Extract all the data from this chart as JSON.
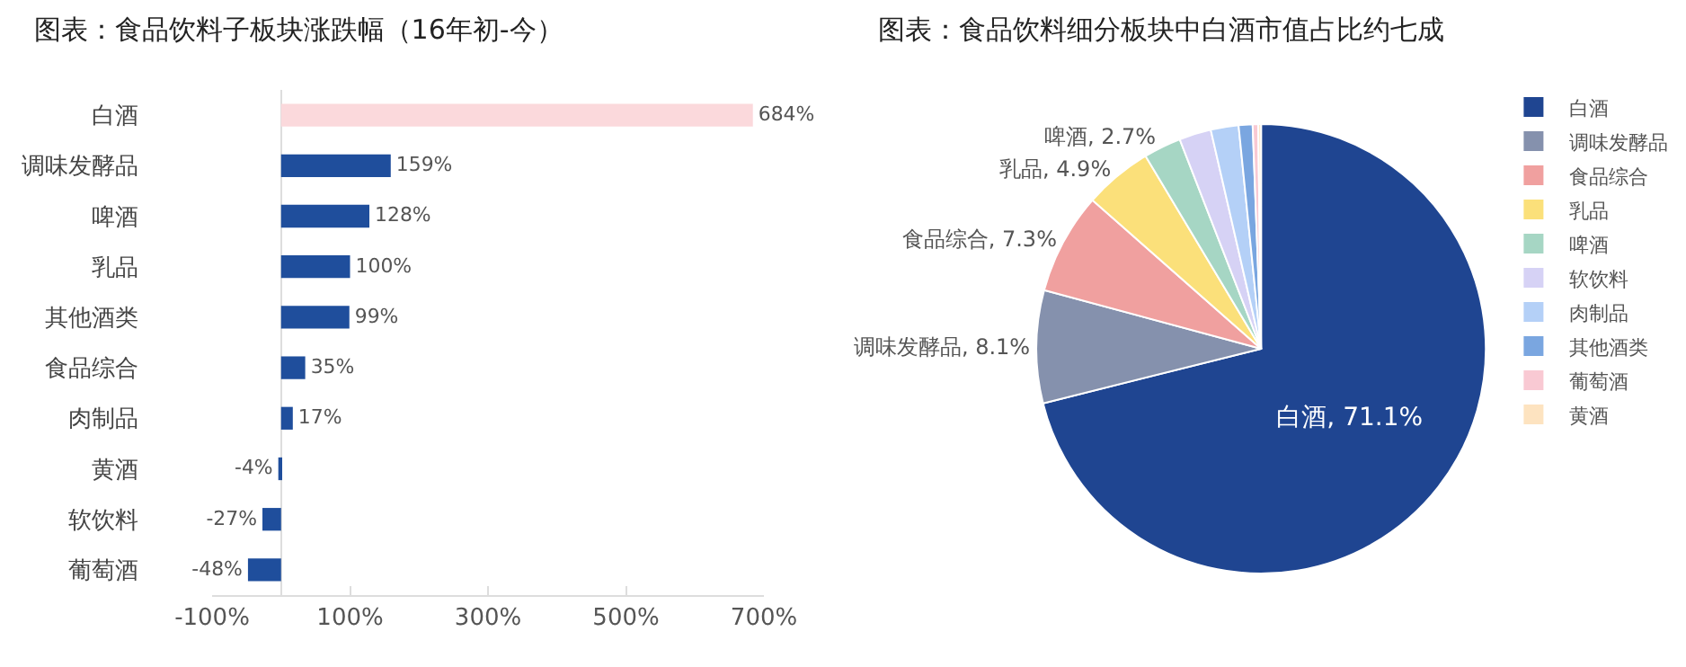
{
  "chart_data": [
    {
      "type": "bar",
      "title": "图表：食品饮料子板块涨跌幅（16年初-今）",
      "orientation": "horizontal",
      "categories": [
        "白酒",
        "调味发酵品",
        "啤酒",
        "乳品",
        "其他酒类",
        "食品综合",
        "肉制品",
        "黄酒",
        "软饮料",
        "葡萄酒"
      ],
      "values": [
        684,
        159,
        128,
        100,
        99,
        35,
        17,
        -4,
        -27,
        -48
      ],
      "colors": [
        "#fbd9dc",
        "#1f4e9c",
        "#1f4e9c",
        "#1f4e9c",
        "#1f4e9c",
        "#1f4e9c",
        "#1f4e9c",
        "#1f4e9c",
        "#1f4e9c",
        "#1f4e9c"
      ],
      "value_labels": [
        "684%",
        "159%",
        "128%",
        "100%",
        "99%",
        "35%",
        "17%",
        "-4%",
        "-27%",
        "-48%"
      ],
      "xlim": [
        -100,
        700
      ],
      "xticks": [
        {
          "value": -100,
          "label": "-100%"
        },
        {
          "value": 100,
          "label": "100%"
        },
        {
          "value": 300,
          "label": "300%"
        },
        {
          "value": 500,
          "label": "500%"
        },
        {
          "value": 700,
          "label": "700%"
        }
      ],
      "grid": false,
      "legend": false
    },
    {
      "type": "pie",
      "title": "图表：食品饮料细分板块中白酒市值占比约七成",
      "categories": [
        "白酒",
        "调味发酵品",
        "食品综合",
        "乳品",
        "啤酒",
        "软饮料",
        "肉制品",
        "其他酒类",
        "葡萄酒",
        "黄酒"
      ],
      "values": [
        71.1,
        8.1,
        7.3,
        4.9,
        2.7,
        2.3,
        2.0,
        1.0,
        0.4,
        0.2
      ],
      "colors": [
        "#1f4591",
        "#8591ad",
        "#f0a09f",
        "#fbe07a",
        "#a6d6c4",
        "#d6d2f5",
        "#b4d0f7",
        "#7aa6e0",
        "#f9c9d3",
        "#fde3c0"
      ],
      "value_labels": [
        "白酒, 71.1%",
        "调味发酵品, 8.1%",
        "食品综合, 7.3%",
        "乳品, 4.9%",
        "啤酒, 2.7%",
        null,
        null,
        null,
        null,
        null
      ],
      "legend": "right"
    }
  ]
}
